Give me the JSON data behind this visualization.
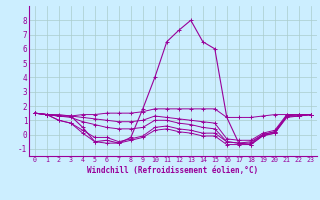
{
  "xlabel": "Windchill (Refroidissement éolien,°C)",
  "ylabel": "",
  "xlim": [
    -0.5,
    23.5
  ],
  "ylim": [
    -1.5,
    9.0
  ],
  "yticks": [
    -1,
    0,
    1,
    2,
    3,
    4,
    5,
    6,
    7,
    8
  ],
  "xticks": [
    0,
    1,
    2,
    3,
    4,
    5,
    6,
    7,
    8,
    9,
    10,
    11,
    12,
    13,
    14,
    15,
    16,
    17,
    18,
    19,
    20,
    21,
    22,
    23
  ],
  "bg_color": "#cceeff",
  "grid_color": "#aacccc",
  "line_color": "#990099",
  "curves": [
    [
      1.5,
      1.4,
      1.4,
      1.3,
      1.4,
      1.4,
      1.5,
      1.5,
      1.5,
      1.6,
      1.8,
      1.8,
      1.8,
      1.8,
      1.8,
      1.8,
      1.2,
      1.2,
      1.2,
      1.3,
      1.4,
      1.4,
      1.4,
      1.4
    ],
    [
      1.5,
      1.4,
      1.0,
      0.8,
      0.3,
      -0.2,
      -0.2,
      -0.5,
      -0.3,
      -0.1,
      0.5,
      0.6,
      0.4,
      0.3,
      0.1,
      0.1,
      -0.5,
      -0.6,
      -0.6,
      0.0,
      0.2,
      1.3,
      1.3,
      1.4
    ],
    [
      1.5,
      1.4,
      1.0,
      0.8,
      0.1,
      -0.5,
      -0.6,
      -0.6,
      -0.4,
      -0.2,
      0.3,
      0.4,
      0.2,
      0.1,
      -0.1,
      -0.1,
      -0.7,
      -0.7,
      -0.7,
      -0.1,
      0.1,
      1.2,
      1.3,
      1.4
    ],
    [
      1.5,
      1.4,
      1.3,
      1.2,
      0.9,
      0.7,
      0.5,
      0.4,
      0.4,
      0.5,
      1.0,
      1.0,
      0.8,
      0.7,
      0.5,
      0.4,
      -0.5,
      -0.6,
      -0.5,
      0.0,
      0.2,
      1.3,
      1.4,
      1.4
    ],
    [
      1.5,
      1.4,
      1.3,
      1.3,
      1.2,
      1.1,
      1.0,
      0.9,
      0.9,
      1.0,
      1.3,
      1.2,
      1.1,
      1.0,
      0.9,
      0.8,
      -0.3,
      -0.4,
      -0.4,
      0.1,
      0.3,
      1.4,
      1.4,
      1.4
    ]
  ],
  "peak_data": [
    1.5,
    1.4,
    1.3,
    1.3,
    0.5,
    -0.5,
    -0.4,
    -0.6,
    -0.2,
    1.8,
    4.0,
    6.5,
    7.3,
    8.0,
    6.5,
    6.0,
    1.2,
    -0.6,
    -0.7,
    -0.05,
    0.1,
    1.3,
    1.3,
    1.4
  ]
}
